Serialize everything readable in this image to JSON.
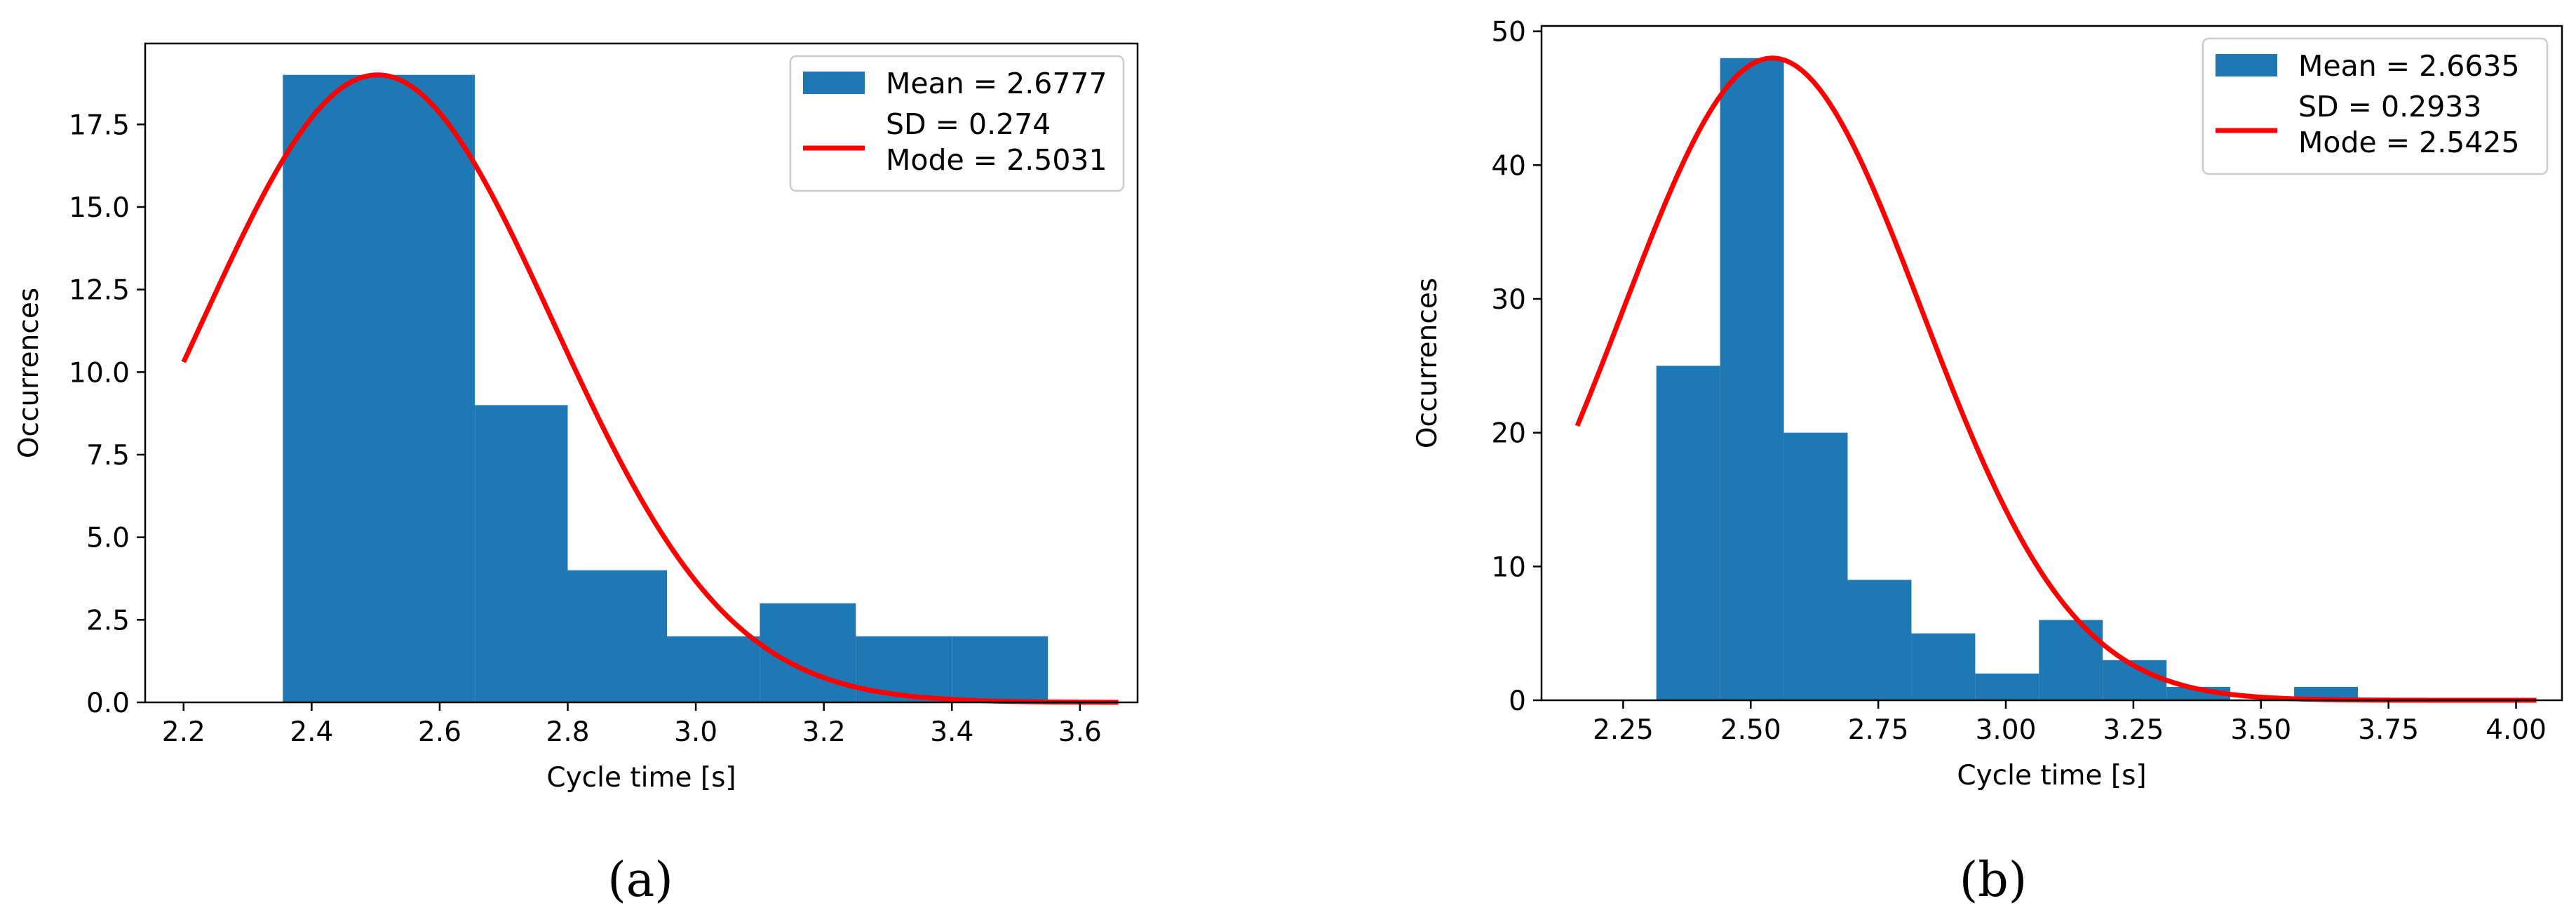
{
  "chart_data": [
    {
      "type": "bar",
      "panel_label": "(a)",
      "xlabel": "Cycle time [s]",
      "ylabel": "Occurrences",
      "xlim": [
        2.14,
        3.69
      ],
      "ylim": [
        0,
        19.95
      ],
      "xticks": [
        2.2,
        2.4,
        2.6,
        2.8,
        3.0,
        3.2,
        3.4,
        3.6
      ],
      "xtick_labels": [
        "2.2",
        "2.4",
        "2.6",
        "2.8",
        "3.0",
        "3.2",
        "3.4",
        "3.6"
      ],
      "yticks": [
        0,
        2.5,
        5,
        7.5,
        10,
        12.5,
        15,
        17.5
      ],
      "ytick_labels": [
        "0.0",
        "2.5",
        "5.0",
        "7.5",
        "10.0",
        "12.5",
        "15.0",
        "17.5"
      ],
      "bins": [
        {
          "x0": 2.355,
          "x1": 2.655,
          "value": 19
        },
        {
          "x0": 2.655,
          "x1": 2.8,
          "value": 9
        },
        {
          "x0": 2.8,
          "x1": 2.955,
          "value": 4
        },
        {
          "x0": 2.955,
          "x1": 3.1,
          "value": 2
        },
        {
          "x0": 3.1,
          "x1": 3.25,
          "value": 3
        },
        {
          "x0": 3.25,
          "x1": 3.4,
          "value": 2
        },
        {
          "x0": 3.4,
          "x1": 3.55,
          "value": 2
        }
      ],
      "curve": {
        "x_start": 2.2,
        "x_end": 3.66,
        "mu": 2.5031,
        "sigma": 0.274,
        "amplitude": 19.0
      },
      "legend": {
        "position": "top-right",
        "bar_entry": "Mean = 2.6777",
        "line_entry_lines": [
          "SD = 0.274",
          "Mode = 2.5031"
        ]
      },
      "colors": {
        "bar": "#1f77b4",
        "curve": "#ff0000"
      }
    },
    {
      "type": "bar",
      "panel_label": "(b)",
      "xlabel": "Cycle time [s]",
      "ylabel": "Occurrences",
      "xlim": [
        2.09,
        4.09
      ],
      "ylim": [
        0,
        50.4
      ],
      "xticks": [
        2.25,
        2.5,
        2.75,
        3.0,
        3.25,
        3.5,
        3.75,
        4.0
      ],
      "xtick_labels": [
        "2.25",
        "2.50",
        "2.75",
        "3.00",
        "3.25",
        "3.50",
        "3.75",
        "4.00"
      ],
      "yticks": [
        0,
        10,
        20,
        30,
        40,
        50
      ],
      "ytick_labels": [
        "0",
        "10",
        "20",
        "30",
        "40",
        "50"
      ],
      "bins": [
        {
          "x0": 2.315,
          "x1": 2.44,
          "value": 25
        },
        {
          "x0": 2.44,
          "x1": 2.565,
          "value": 48
        },
        {
          "x0": 2.565,
          "x1": 2.69,
          "value": 20
        },
        {
          "x0": 2.69,
          "x1": 2.815,
          "value": 9
        },
        {
          "x0": 2.815,
          "x1": 2.94,
          "value": 5
        },
        {
          "x0": 2.94,
          "x1": 3.065,
          "value": 2
        },
        {
          "x0": 3.065,
          "x1": 3.19,
          "value": 6
        },
        {
          "x0": 3.19,
          "x1": 3.315,
          "value": 3
        },
        {
          "x0": 3.315,
          "x1": 3.44,
          "value": 1
        },
        {
          "x0": 3.44,
          "x1": 3.565,
          "value": 0
        },
        {
          "x0": 3.565,
          "x1": 3.69,
          "value": 1
        }
      ],
      "curve": {
        "x_start": 2.16,
        "x_end": 4.04,
        "mu": 2.5425,
        "sigma": 0.2933,
        "amplitude": 48.0
      },
      "legend": {
        "position": "top-right",
        "bar_entry": "Mean = 2.6635",
        "line_entry_lines": [
          "SD = 0.2933",
          "Mode = 2.5425"
        ]
      },
      "colors": {
        "bar": "#1f77b4",
        "curve": "#ff0000"
      }
    }
  ]
}
